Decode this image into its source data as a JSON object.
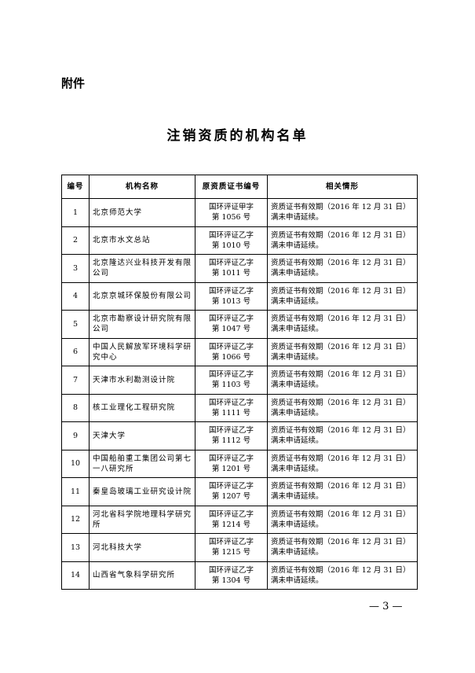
{
  "header": {
    "attachment": "附件",
    "title": "注销资质的机构名单"
  },
  "table": {
    "columns": [
      "编号",
      "机构名称",
      "原资质证书编号",
      "相关情形"
    ],
    "rows": [
      [
        "1",
        "北京师范大学",
        [
          "国环评证甲字",
          "第 1056 号"
        ],
        [
          "资质证书有效期（2016 年 12 月 31 日）",
          "满未申请延续。"
        ]
      ],
      [
        "2",
        "北京市水文总站",
        [
          "国环评证乙字",
          "第 1010 号"
        ],
        [
          "资质证书有效期（2016 年 12 月 31 日）",
          "满未申请延续。"
        ]
      ],
      [
        "3",
        "北京隆达兴业科技开发有限公司",
        [
          "国环评证乙字",
          "第 1011 号"
        ],
        [
          "资质证书有效期（2016 年 12 月 31 日）",
          "满未申请延续。"
        ]
      ],
      [
        "4",
        "北京京城环保股份有限公司",
        [
          "国环评证乙字",
          "第 1013 号"
        ],
        [
          "资质证书有效期（2016 年 12 月 31 日）",
          "满未申请延续。"
        ]
      ],
      [
        "5",
        "北京市勘察设计研究院有限公司",
        [
          "国环评证乙字",
          "第 1047 号"
        ],
        [
          "资质证书有效期（2016 年 12 月 31 日）",
          "满未申请延续。"
        ]
      ],
      [
        "6",
        "中国人民解放军环境科学研究中心",
        [
          "国环评证乙字",
          "第 1066 号"
        ],
        [
          "资质证书有效期（2016 年 12 月 31 日）",
          "满未申请延续。"
        ]
      ],
      [
        "7",
        "天津市水利勘测设计院",
        [
          "国环评证乙字",
          "第 1103 号"
        ],
        [
          "资质证书有效期（2016 年 12 月 31 日）",
          "满未申请延续。"
        ]
      ],
      [
        "8",
        "核工业理化工程研究院",
        [
          "国环评证乙字",
          "第 1111 号"
        ],
        [
          "资质证书有效期（2016 年 12 月 31 日）",
          "满未申请延续。"
        ]
      ],
      [
        "9",
        "天津大学",
        [
          "国环评证乙字",
          "第 1112 号"
        ],
        [
          "资质证书有效期（2016 年 12 月 31 日）",
          "满未申请延续。"
        ]
      ],
      [
        "10",
        "中国船舶重工集团公司第七一八研究所",
        [
          "国环评证乙字",
          "第 1201 号"
        ],
        [
          "资质证书有效期（2016 年 12 月 31 日）",
          "满未申请延续。"
        ]
      ],
      [
        "11",
        "秦皇岛玻璃工业研究设计院",
        [
          "国环评证乙字",
          "第 1207 号"
        ],
        [
          "资质证书有效期（2016 年 12 月 31 日）",
          "满未申请延续。"
        ]
      ],
      [
        "12",
        "河北省科学院地理科学研究所",
        [
          "国环评证乙字",
          "第 1214 号"
        ],
        [
          "资质证书有效期（2016 年 12 月 31 日）",
          "满未申请延续。"
        ]
      ],
      [
        "13",
        "河北科技大学",
        [
          "国环评证乙字",
          "第 1215 号"
        ],
        [
          "资质证书有效期（2016 年 12 月 31 日）",
          "满未申请延续。"
        ]
      ],
      [
        "14",
        "山西省气象科学研究所",
        [
          "国环评证乙字",
          "第 1304 号"
        ],
        [
          "资质证书有效期（2016 年 12 月 31 日）",
          "满未申请延续。"
        ]
      ]
    ]
  },
  "footer": {
    "page_number": "— 3 —"
  }
}
